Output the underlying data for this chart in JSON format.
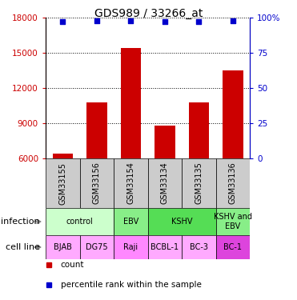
{
  "title": "GDS989 / 33266_at",
  "samples": [
    "GSM33155",
    "GSM33156",
    "GSM33154",
    "GSM33134",
    "GSM33135",
    "GSM33136"
  ],
  "counts": [
    6400,
    10800,
    15400,
    8800,
    10800,
    13500
  ],
  "percentile_ranks": [
    97,
    98,
    98,
    97,
    97,
    98
  ],
  "bar_color": "#cc0000",
  "dot_color": "#0000cc",
  "ylim_left": [
    6000,
    18000
  ],
  "yticks_left": [
    6000,
    9000,
    12000,
    15000,
    18000
  ],
  "ylim_right": [
    0,
    100
  ],
  "yticks_right": [
    0,
    25,
    50,
    75,
    100
  ],
  "sample_bg_color": "#cccccc",
  "inf_groups": [
    {
      "label": "control",
      "start": 0,
      "end": 1,
      "color": "#ccffcc"
    },
    {
      "label": "EBV",
      "start": 2,
      "end": 2,
      "color": "#88ee88"
    },
    {
      "label": "KSHV",
      "start": 3,
      "end": 4,
      "color": "#55dd55"
    },
    {
      "label": "KSHV and\nEBV",
      "start": 5,
      "end": 5,
      "color": "#88ee88"
    }
  ],
  "cell_groups": [
    {
      "label": "BJAB",
      "start": 0,
      "end": 0,
      "color": "#ffaaff"
    },
    {
      "label": "DG75",
      "start": 1,
      "end": 1,
      "color": "#ffaaff"
    },
    {
      "label": "Raji",
      "start": 2,
      "end": 2,
      "color": "#ff88ff"
    },
    {
      "label": "BCBL-1",
      "start": 3,
      "end": 3,
      "color": "#ffaaff"
    },
    {
      "label": "BC-3",
      "start": 4,
      "end": 4,
      "color": "#ffaaff"
    },
    {
      "label": "BC-1",
      "start": 5,
      "end": 5,
      "color": "#dd44dd"
    }
  ],
  "infection_row_label": "infection",
  "cell_line_row_label": "cell line",
  "legend_count_label": "count",
  "legend_percentile_label": "percentile rank within the sample",
  "bar_color_label": "#cc0000",
  "dot_color_label": "#0000cc",
  "title_fontsize": 10,
  "tick_fontsize": 7.5,
  "table_fontsize": 7,
  "row_label_fontsize": 8
}
